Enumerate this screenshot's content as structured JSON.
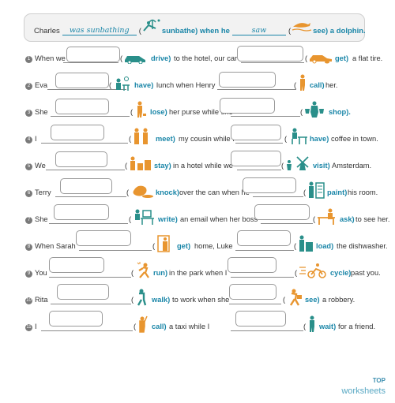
{
  "example": {
    "subject": "Charles",
    "answer1": "was sunbathing",
    "verb1": "sunbathe) when he",
    "answer2": "saw",
    "verb2": "see) a dolphin."
  },
  "rows": [
    {
      "num": "1",
      "s1": "When we",
      "v1": "drive)",
      "m": "to the hotel, our car",
      "v2": "get)",
      "e": "a flat tire."
    },
    {
      "num": "2",
      "s1": "Eva",
      "v1": "have)",
      "m": "lunch when Henry",
      "v2": "call)",
      "e": "her."
    },
    {
      "num": "3",
      "s1": "She",
      "v1": "lose)",
      "m": "her purse while she",
      "v2": "shop).",
      "e": ""
    },
    {
      "num": "4",
      "s1": "I",
      "v1": "meet)",
      "m": "my cousin while I",
      "v2": "have)",
      "e": "coffee in town."
    },
    {
      "num": "5",
      "s1": "We",
      "v1": "stay)",
      "m": "in a hotel while we",
      "v2": "visit)",
      "e": "Amsterdam."
    },
    {
      "num": "6",
      "s1": "Terry",
      "v1": "knock)",
      "m": "over the can when he",
      "v2": "paint)",
      "e": "his room."
    },
    {
      "num": "7",
      "s1": "She",
      "v1": "write)",
      "m": "an email when her boss",
      "v2": "ask)",
      "e": "to see her."
    },
    {
      "num": "8",
      "s1": "When Sarah",
      "v1": "get)",
      "m": "home, Luke",
      "v2": "load)",
      "e": "the dishwasher."
    },
    {
      "num": "9",
      "s1": "You",
      "v1": "run)",
      "m": "in the park when I",
      "v2": "cycle)",
      "e": "past you."
    },
    {
      "num": "10",
      "s1": "Rita",
      "v1": "walk)",
      "m": "to work when she",
      "v2": "see)",
      "e": "a robbery."
    },
    {
      "num": "11",
      "s1": "I",
      "v1": "call)",
      "m": "a taxi while I",
      "v2": "wait)",
      "e": "for a friend."
    }
  ],
  "logo": {
    "top": "TOP",
    "bottom": "worksheets"
  },
  "colors": {
    "teal": "#1a86a8",
    "orange": "#e8952f",
    "icon_teal": "#2a8f8a"
  }
}
